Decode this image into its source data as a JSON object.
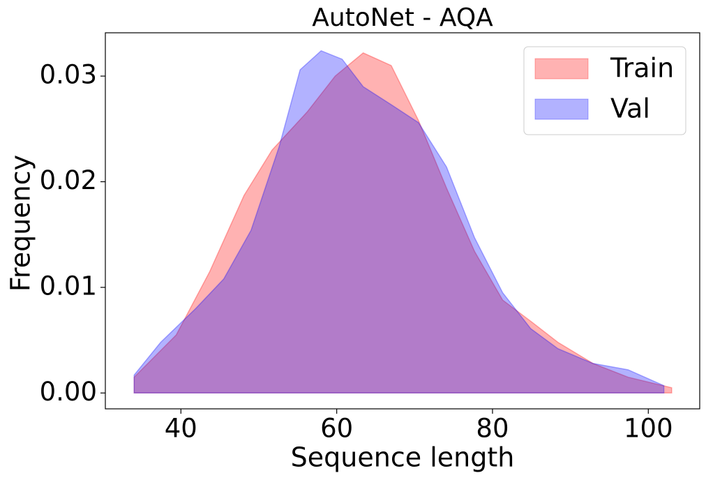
{
  "chart_data": {
    "type": "area",
    "title": "AutoNet - AQA",
    "x_label": "Sequence length",
    "y_label": "Frequency",
    "xlim": [
      30.3,
      106.6
    ],
    "ylim": [
      -0.0015,
      0.0341
    ],
    "xticks": [
      40,
      60,
      80,
      100
    ],
    "yticks": [
      {
        "value": 0,
        "label": "0.00"
      },
      {
        "value": 0.01,
        "label": "0.01"
      },
      {
        "value": 0.02,
        "label": "0.02"
      },
      {
        "value": 0.03,
        "label": "0.03"
      }
    ],
    "legend": "upper right",
    "series": [
      {
        "name": "Train",
        "color": "#ff0000",
        "x": [
          34,
          39.4,
          43.7,
          48.1,
          51.7,
          56.2,
          59.8,
          63.4,
          67,
          70.5,
          74.1,
          77.7,
          81.3,
          84.9,
          88.4,
          92.9,
          97.4,
          103
        ],
        "values": [
          0.0015,
          0.0055,
          0.0115,
          0.0187,
          0.023,
          0.0266,
          0.03,
          0.0322,
          0.031,
          0.0258,
          0.0194,
          0.0134,
          0.0088,
          0.0068,
          0.0048,
          0.0028,
          0.0015,
          0.0005
        ]
      },
      {
        "name": "Val",
        "color": "#0000ff",
        "x": [
          34,
          37.4,
          41.9,
          45.5,
          49,
          52.6,
          55.3,
          58,
          60.7,
          63.4,
          67,
          70.5,
          74.1,
          77.7,
          81.3,
          84.9,
          88.4,
          92.9,
          97.4,
          102
        ],
        "values": [
          0.0017,
          0.0048,
          0.008,
          0.0108,
          0.0154,
          0.0233,
          0.0306,
          0.0324,
          0.0316,
          0.029,
          0.0273,
          0.0256,
          0.0214,
          0.0147,
          0.0095,
          0.0061,
          0.0042,
          0.0028,
          0.0022,
          0.0007
        ]
      }
    ]
  }
}
